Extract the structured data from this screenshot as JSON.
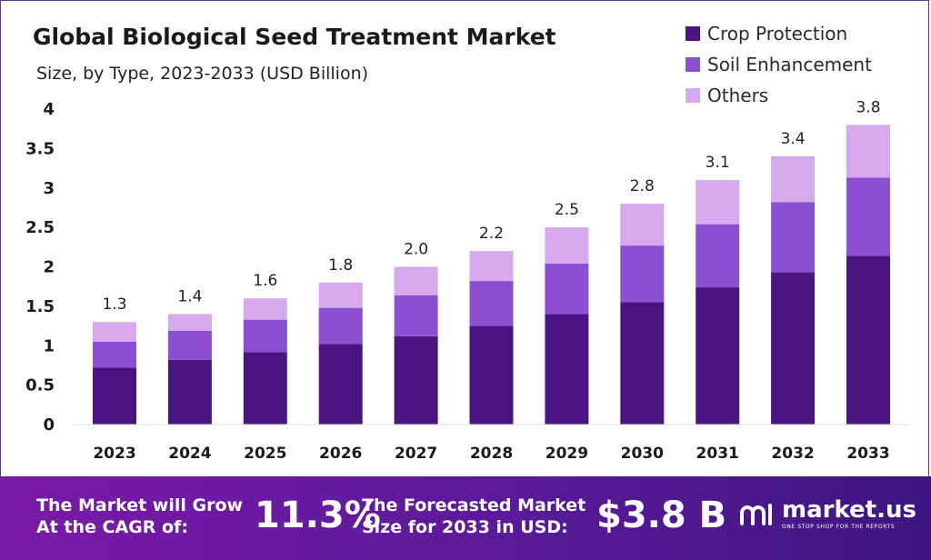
{
  "title": "Global Biological Seed Treatment Market",
  "subtitle": "Size, by Type, 2023-2033 (USD Billion)",
  "colors": {
    "crop": "#4a1580",
    "soil": "#8c4fcf",
    "others": "#d6a9ec",
    "axis_text": "#1a1a1a"
  },
  "legend": [
    {
      "label": "Crop Protection",
      "color": "#4a1580"
    },
    {
      "label": "Soil Enhancement",
      "color": "#8c4fcf"
    },
    {
      "label": "Others",
      "color": "#d6a9ec"
    }
  ],
  "chart_data": {
    "type": "bar",
    "stacked": true,
    "title": "Global Biological Seed Treatment Market",
    "subtitle": "Size, by Type, 2023-2033 (USD Billion)",
    "categories": [
      "2023",
      "2024",
      "2025",
      "2026",
      "2027",
      "2028",
      "2029",
      "2030",
      "2031",
      "2032",
      "2033"
    ],
    "series": [
      {
        "name": "Crop Protection",
        "values": [
          0.72,
          0.82,
          0.92,
          1.02,
          1.12,
          1.25,
          1.4,
          1.55,
          1.74,
          1.93,
          2.14
        ]
      },
      {
        "name": "Soil Enhancement",
        "values": [
          0.33,
          0.37,
          0.41,
          0.46,
          0.52,
          0.57,
          0.64,
          0.72,
          0.8,
          0.89,
          0.99
        ]
      },
      {
        "name": "Others",
        "values": [
          0.25,
          0.21,
          0.27,
          0.32,
          0.36,
          0.38,
          0.46,
          0.53,
          0.56,
          0.58,
          0.67
        ]
      }
    ],
    "totals_labels": [
      "1.3",
      "1.4",
      "1.6",
      "1.8",
      "2.0",
      "2.2",
      "2.5",
      "2.8",
      "3.1",
      "3.4",
      "3.8"
    ],
    "yticks": [
      "0",
      "0.5",
      "1",
      "1.5",
      "2",
      "2.5",
      "3",
      "3.5",
      "4"
    ],
    "ylim": [
      0,
      4
    ],
    "grid": false,
    "legend_position": "top-right"
  },
  "footer": {
    "cagr_text_line1": "The Market will Grow",
    "cagr_text_line2": "At the CAGR of:",
    "cagr_value": "11.3%",
    "forecast_text_line1": "The Forecasted Market",
    "forecast_text_line2": "Size for 2033 in USD:",
    "forecast_value": "$3.8 B",
    "brand_name": "market.us",
    "brand_tagline": "ONE STOP SHOP FOR THE REPORTS"
  }
}
